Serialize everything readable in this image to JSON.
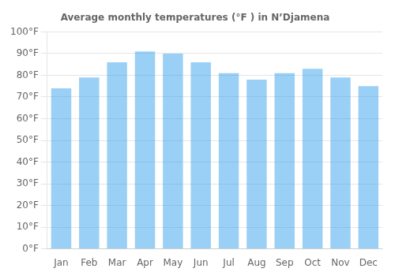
{
  "chart_data": {
    "type": "bar",
    "title": "Average monthly temperatures (°F ) in N’Djamena",
    "categories": [
      "Jan",
      "Feb",
      "Mar",
      "Apr",
      "May",
      "Jun",
      "Jul",
      "Aug",
      "Sep",
      "Oct",
      "Nov",
      "Dec"
    ],
    "values": [
      74,
      79,
      86,
      91,
      90,
      86,
      81,
      78,
      81,
      83,
      79,
      75
    ],
    "ylim": [
      0,
      100
    ],
    "yticks": [
      {
        "value": 0,
        "label": "0°F"
      },
      {
        "value": 10,
        "label": "10°F"
      },
      {
        "value": 20,
        "label": "20°F"
      },
      {
        "value": 30,
        "label": "30°F"
      },
      {
        "value": 40,
        "label": "40°F"
      },
      {
        "value": 50,
        "label": "50°F"
      },
      {
        "value": 60,
        "label": "60°F"
      },
      {
        "value": 70,
        "label": "70°F"
      },
      {
        "value": 80,
        "label": "80°F"
      },
      {
        "value": 90,
        "label": "90°F"
      },
      {
        "value": 100,
        "label": "100°F"
      }
    ],
    "grid": true
  }
}
